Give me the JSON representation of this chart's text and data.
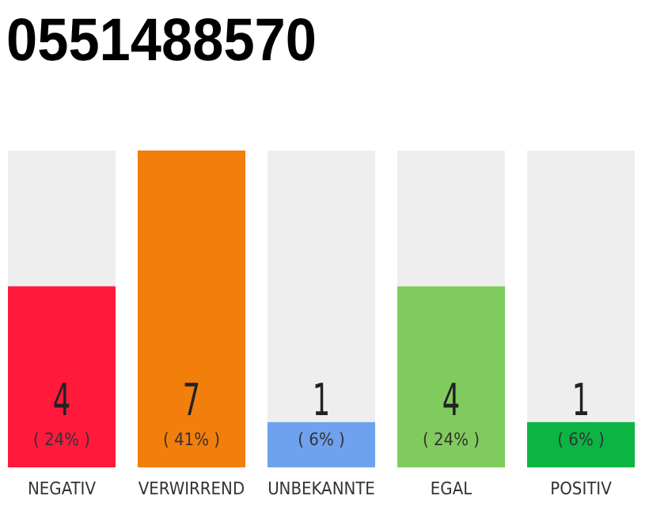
{
  "chart_data": {
    "type": "bar",
    "title": "0551488570",
    "categories": [
      "NEGATIV",
      "VERWIRREND",
      "UNBEKANNTE",
      "EGAL",
      "POSITIV"
    ],
    "values": [
      4,
      7,
      1,
      4,
      1
    ],
    "colors": [
      "#ff1a3c",
      "#f27e0c",
      "#6ea2ee",
      "#80cb5d",
      "#0cb443"
    ],
    "ylim": [
      0,
      7
    ],
    "tick_labels": "x",
    "data_labels": true,
    "annotations": [
      "( 24% )",
      "( 41% )",
      "( 6% )",
      "( 24% )",
      "( 6% )"
    ]
  }
}
